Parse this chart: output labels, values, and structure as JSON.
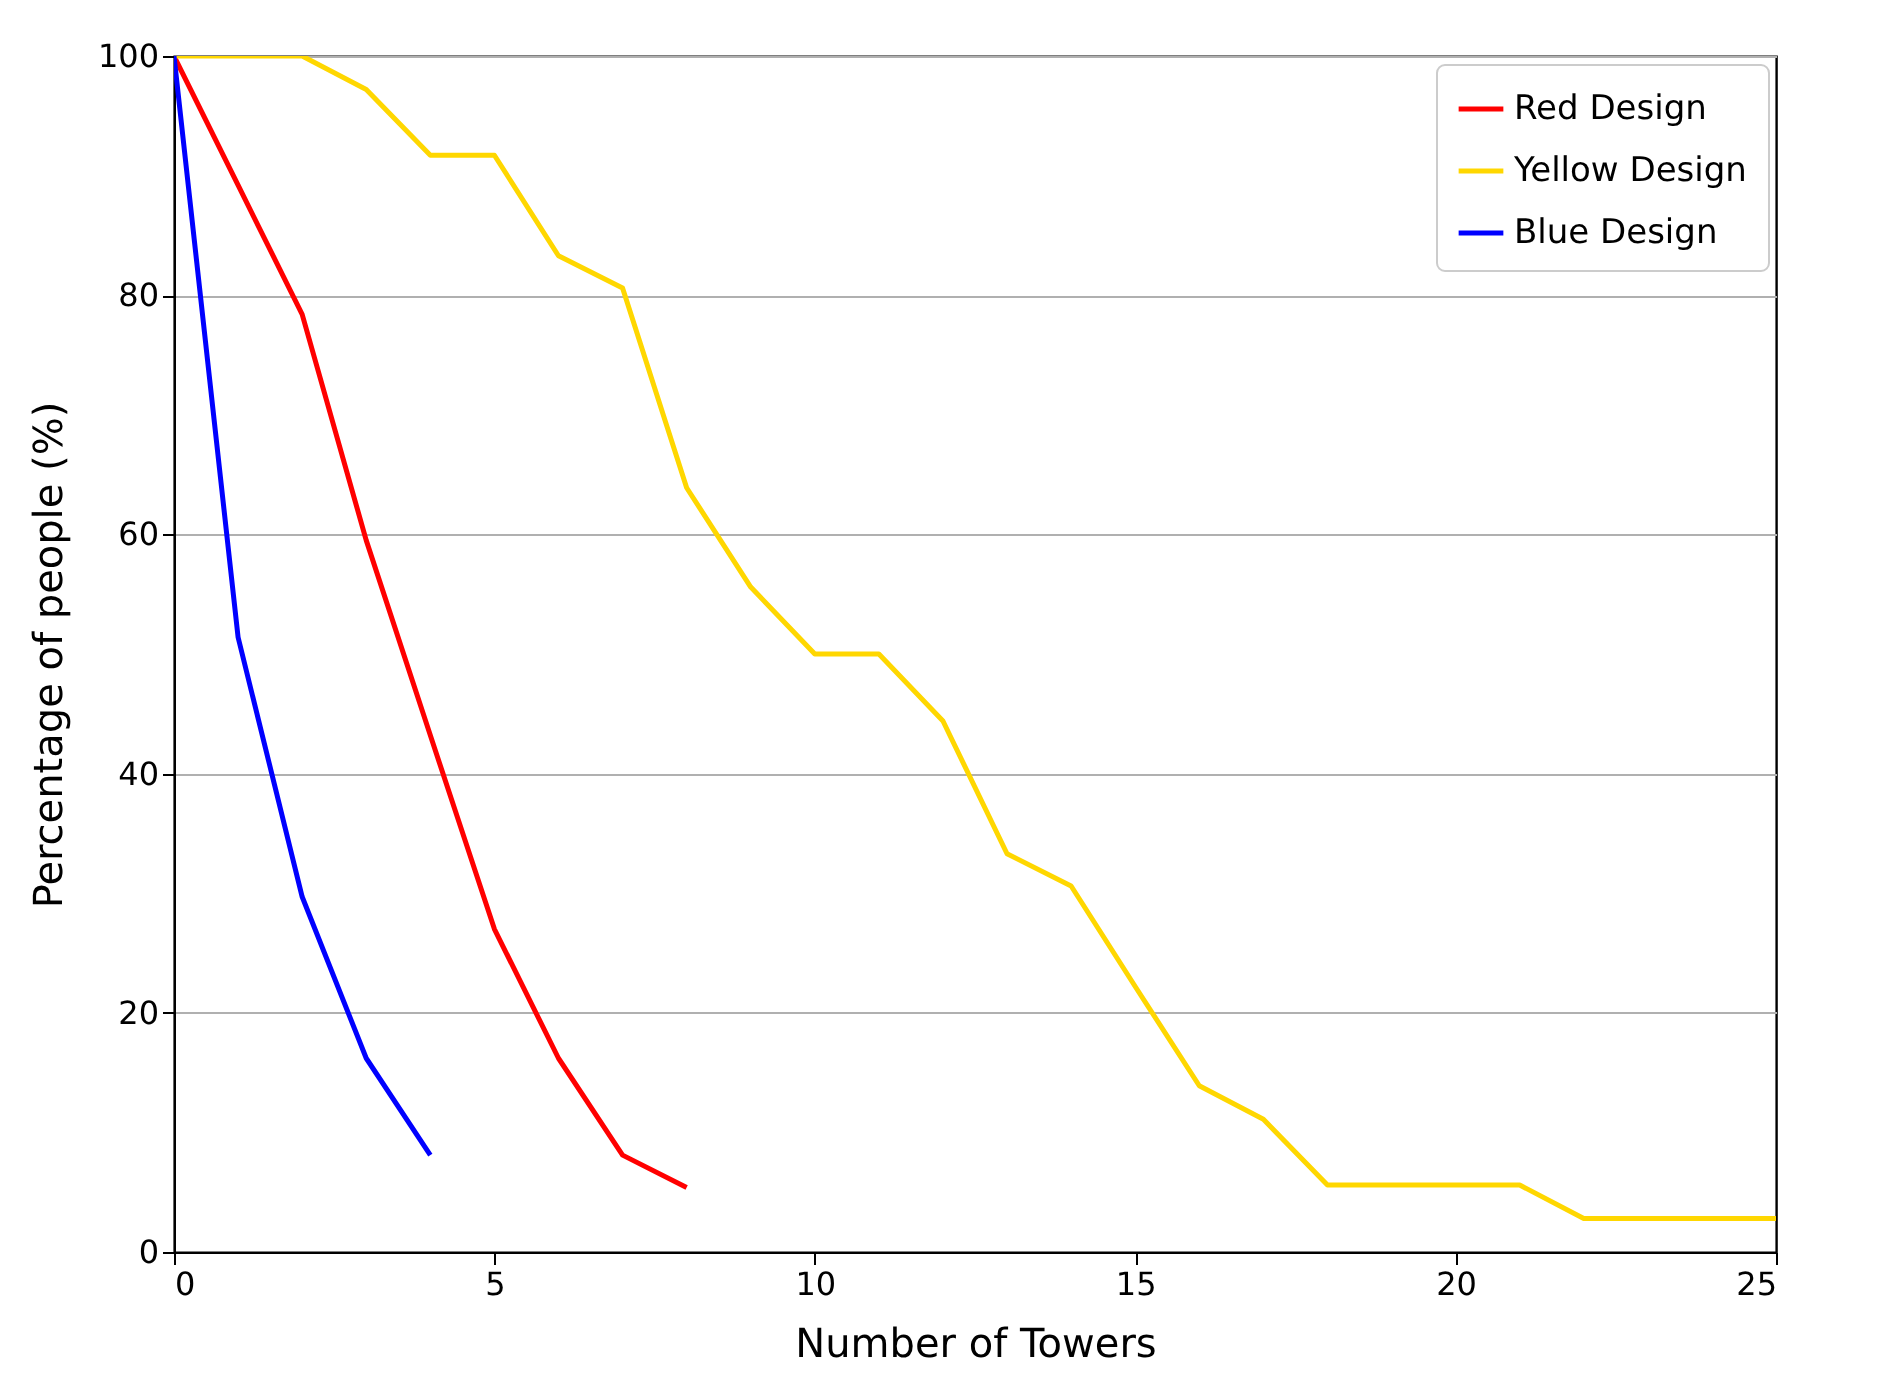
{
  "chart_data": {
    "type": "line",
    "xlabel": "Number of Towers",
    "ylabel": "Percentage of people (%)",
    "xlim": [
      0,
      25
    ],
    "xticks": [
      0,
      5,
      10,
      15,
      20,
      25
    ],
    "ylim": [
      0,
      100
    ],
    "yticks": [
      0,
      20,
      40,
      60,
      80,
      100
    ],
    "grid": "y",
    "legend": "top right",
    "line_style": "solid",
    "marker": "none",
    "series": [
      {
        "name": "Red Design",
        "color": "#ff0000",
        "x": [
          0,
          1,
          2,
          3,
          4,
          5,
          6,
          7,
          8
        ],
        "values": [
          100,
          89.2,
          78.4,
          59.5,
          43.2,
          27.0,
          16.2,
          8.1,
          5.4
        ]
      },
      {
        "name": "Yellow Design",
        "color": "#ffd700",
        "x": [
          0,
          1,
          2,
          3,
          4,
          5,
          6,
          7,
          8,
          9,
          10,
          11,
          12,
          13,
          14,
          15,
          16,
          17,
          18,
          19,
          20,
          21,
          22,
          23,
          24,
          25
        ],
        "values": [
          100,
          100,
          100,
          97.2,
          91.7,
          91.7,
          83.3,
          80.6,
          63.9,
          55.6,
          50,
          50,
          44.4,
          33.3,
          30.6,
          22.2,
          13.9,
          11.1,
          5.6,
          5.6,
          5.6,
          5.6,
          2.8,
          2.8,
          2.8,
          2.8
        ]
      },
      {
        "name": "Blue Design",
        "color": "#0000ff",
        "x": [
          0,
          1,
          2,
          3,
          4
        ],
        "values": [
          100,
          51.4,
          29.7,
          16.2,
          8.1
        ]
      }
    ]
  }
}
